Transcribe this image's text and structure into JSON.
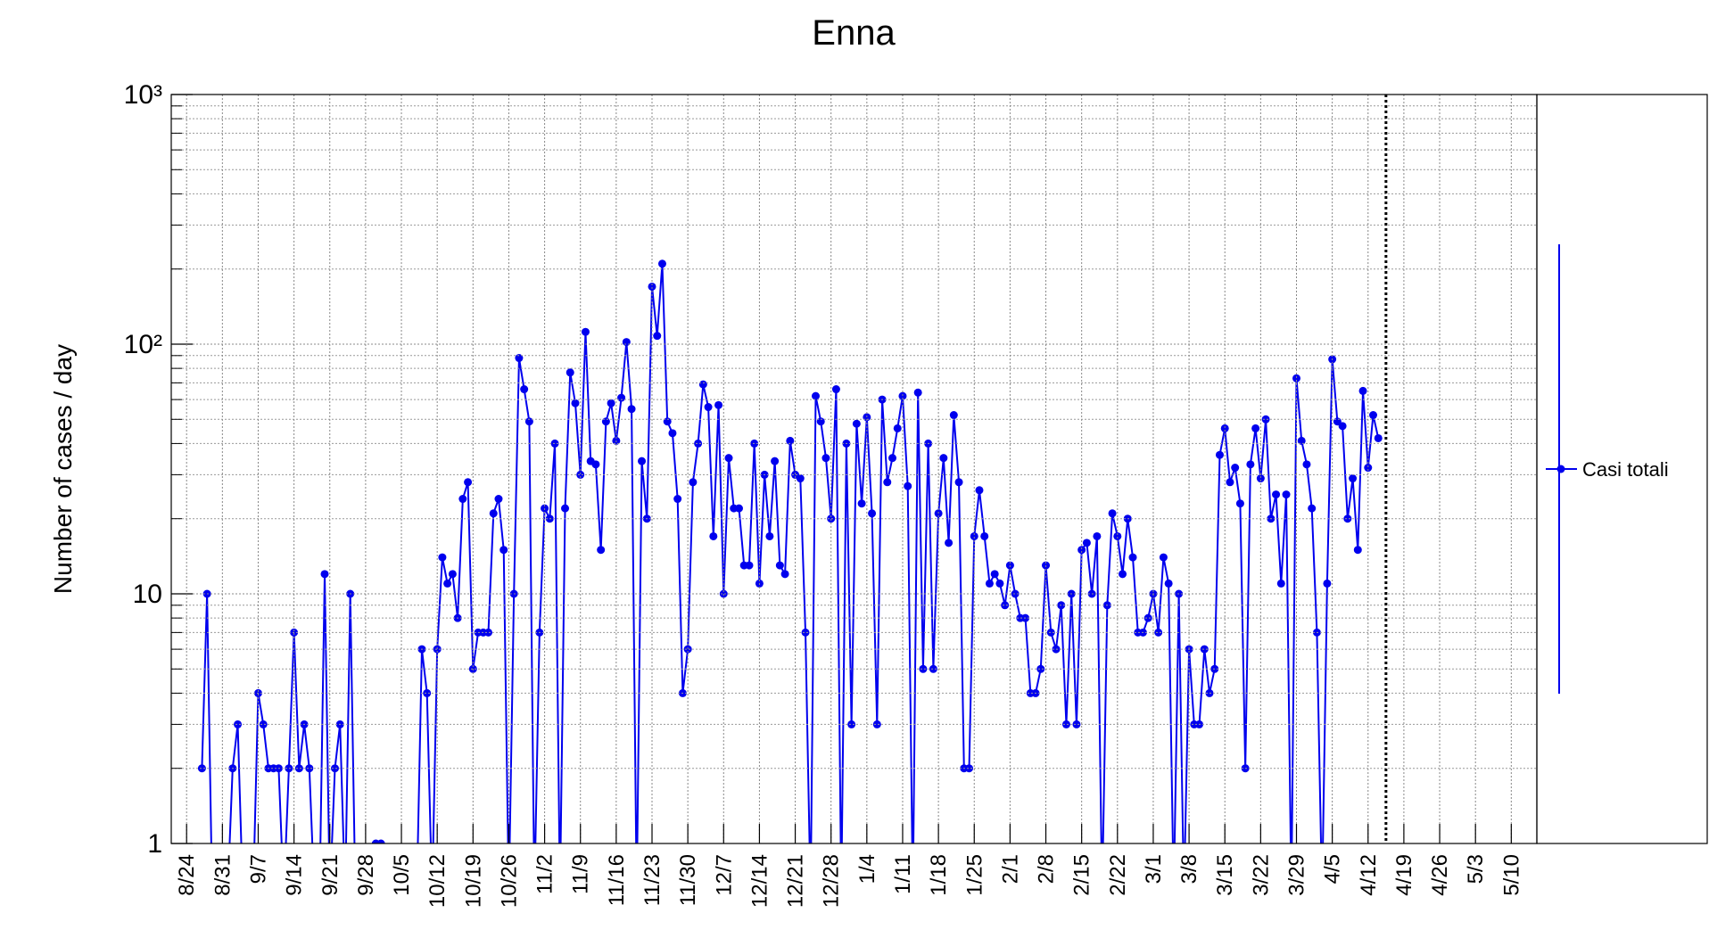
{
  "chart_data": {
    "type": "line",
    "title": "Enna",
    "y_label": "Number of cases / day",
    "x": [
      3,
      4,
      5,
      6,
      7,
      8,
      9,
      10,
      11,
      12,
      13,
      14,
      15,
      16,
      17,
      18,
      19,
      20,
      21,
      22,
      23,
      24,
      25,
      26,
      27,
      28,
      29,
      30,
      31,
      32,
      33,
      34,
      35,
      36,
      37,
      38,
      39,
      40,
      41,
      42,
      43,
      44,
      45,
      46,
      47,
      48,
      49,
      50,
      51,
      52,
      53,
      54,
      55,
      56,
      57,
      58,
      59,
      60,
      61,
      62,
      63,
      64,
      65,
      66,
      67,
      68,
      69,
      70,
      71,
      72,
      73,
      74,
      75,
      76,
      77,
      78,
      79,
      80,
      81,
      82,
      83,
      84,
      85,
      86,
      87,
      88,
      89,
      90,
      91,
      92,
      93,
      94,
      95,
      96,
      97,
      98,
      99,
      100,
      101,
      102,
      103,
      104,
      105,
      106,
      107,
      108,
      109,
      110,
      111,
      112,
      113,
      114,
      115,
      116,
      117,
      118,
      119,
      120,
      121,
      122,
      123,
      124,
      125,
      126,
      127,
      128,
      129,
      130,
      131,
      132,
      133,
      134,
      135,
      136,
      137,
      138,
      139,
      140,
      141,
      142,
      143,
      144,
      145,
      146,
      147,
      148,
      149,
      150,
      151,
      152,
      153,
      154,
      155,
      156,
      157,
      158,
      159,
      160,
      161,
      162,
      163,
      164,
      165,
      166,
      167,
      168,
      169,
      170,
      171,
      172,
      173,
      174,
      175,
      176,
      177,
      178,
      179,
      180,
      181,
      182,
      183,
      184,
      185,
      186,
      187,
      188,
      189,
      190,
      191,
      192,
      193,
      194,
      195,
      196,
      197,
      198,
      199,
      200,
      201,
      202,
      203,
      204,
      205,
      206,
      207,
      208,
      209,
      210,
      211,
      212,
      213,
      214,
      215,
      216,
      217,
      218,
      219,
      220,
      221,
      222,
      223,
      224,
      225,
      226,
      227,
      228,
      229,
      230,
      231,
      232,
      233
    ],
    "series": [
      {
        "name": "Casi totali",
        "color": "#0000ee",
        "values": [
          2,
          10,
          0,
          0,
          0,
          0,
          2,
          3,
          0,
          0,
          0,
          4,
          3,
          2,
          2,
          2,
          0,
          2,
          7,
          2,
          3,
          2,
          0,
          0,
          12,
          0,
          2,
          3,
          0,
          10,
          0,
          0,
          0,
          0,
          1,
          1,
          0,
          0,
          0,
          0,
          0,
          0,
          0,
          6,
          4,
          0,
          6,
          14,
          11,
          12,
          8,
          24,
          28,
          5,
          7,
          7,
          7,
          21,
          24,
          15,
          0,
          10,
          88,
          66,
          49,
          0,
          7,
          22,
          20,
          40,
          0,
          22,
          77,
          58,
          30,
          112,
          34,
          33,
          15,
          49,
          58,
          41,
          61,
          102,
          55,
          0,
          34,
          20,
          170,
          108,
          210,
          49,
          44,
          24,
          4,
          6,
          28,
          40,
          69,
          56,
          17,
          57,
          10,
          35,
          22,
          22,
          13,
          13,
          40,
          11,
          30,
          17,
          34,
          13,
          12,
          41,
          30,
          29,
          7,
          0,
          62,
          49,
          35,
          20,
          66,
          0,
          40,
          3,
          48,
          23,
          51,
          21,
          3,
          60,
          28,
          35,
          46,
          62,
          27,
          0,
          64,
          5,
          40,
          5,
          21,
          35,
          16,
          52,
          28,
          2,
          2,
          17,
          26,
          17,
          11,
          12,
          11,
          9,
          13,
          10,
          8,
          8,
          4,
          4,
          5,
          13,
          7,
          6,
          9,
          3,
          10,
          3,
          15,
          16,
          10,
          17,
          0,
          9,
          21,
          17,
          12,
          20,
          14,
          7,
          7,
          8,
          10,
          7,
          14,
          11,
          0,
          10,
          0,
          6,
          3,
          3,
          6,
          4,
          5,
          36,
          46,
          28,
          32,
          23,
          2,
          33,
          46,
          29,
          50,
          20,
          25,
          11,
          25,
          0,
          73,
          41,
          33,
          22,
          7,
          0,
          11,
          87,
          49,
          47,
          20,
          29,
          15,
          65,
          32,
          52,
          42
        ]
      }
    ],
    "xlim": [
      -3,
      264
    ],
    "xticks": [
      {
        "value": 0,
        "label": "8/24"
      },
      {
        "value": 7,
        "label": "8/31"
      },
      {
        "value": 14,
        "label": "9/7"
      },
      {
        "value": 21,
        "label": "9/14"
      },
      {
        "value": 28,
        "label": "9/21"
      },
      {
        "value": 35,
        "label": "9/28"
      },
      {
        "value": 42,
        "label": "10/5"
      },
      {
        "value": 49,
        "label": "10/12"
      },
      {
        "value": 56,
        "label": "10/19"
      },
      {
        "value": 63,
        "label": "10/26"
      },
      {
        "value": 70,
        "label": "11/2"
      },
      {
        "value": 77,
        "label": "11/9"
      },
      {
        "value": 84,
        "label": "11/16"
      },
      {
        "value": 91,
        "label": "11/23"
      },
      {
        "value": 98,
        "label": "11/30"
      },
      {
        "value": 105,
        "label": "12/7"
      },
      {
        "value": 112,
        "label": "12/14"
      },
      {
        "value": 119,
        "label": "12/21"
      },
      {
        "value": 126,
        "label": "12/28"
      },
      {
        "value": 133,
        "label": "1/4"
      },
      {
        "value": 140,
        "label": "1/11"
      },
      {
        "value": 147,
        "label": "1/18"
      },
      {
        "value": 154,
        "label": "1/25"
      },
      {
        "value": 161,
        "label": "2/1"
      },
      {
        "value": 168,
        "label": "2/8"
      },
      {
        "value": 175,
        "label": "2/15"
      },
      {
        "value": 182,
        "label": "2/22"
      },
      {
        "value": 189,
        "label": "3/1"
      },
      {
        "value": 196,
        "label": "3/8"
      },
      {
        "value": 203,
        "label": "3/15"
      },
      {
        "value": 210,
        "label": "3/22"
      },
      {
        "value": 217,
        "label": "3/29"
      },
      {
        "value": 224,
        "label": "4/5"
      },
      {
        "value": 231,
        "label": "4/12"
      },
      {
        "value": 238,
        "label": "4/19"
      },
      {
        "value": 245,
        "label": "4/26"
      },
      {
        "value": 252,
        "label": "5/3"
      },
      {
        "value": 259,
        "label": "5/10"
      }
    ],
    "ylim": [
      1,
      1000
    ],
    "log_y": true,
    "yticks": [
      1,
      10,
      {
        "value": 100,
        "label": "10²"
      },
      {
        "value": 1000,
        "label": "10³"
      }
    ],
    "minor_yticks": [
      2,
      3,
      4,
      5,
      6,
      7,
      8,
      9,
      20,
      30,
      40,
      50,
      60,
      70,
      80,
      90,
      200,
      300,
      400,
      500,
      600,
      700,
      800,
      900
    ],
    "reference_line_x": 234.5,
    "grid": true,
    "legend": "right"
  }
}
